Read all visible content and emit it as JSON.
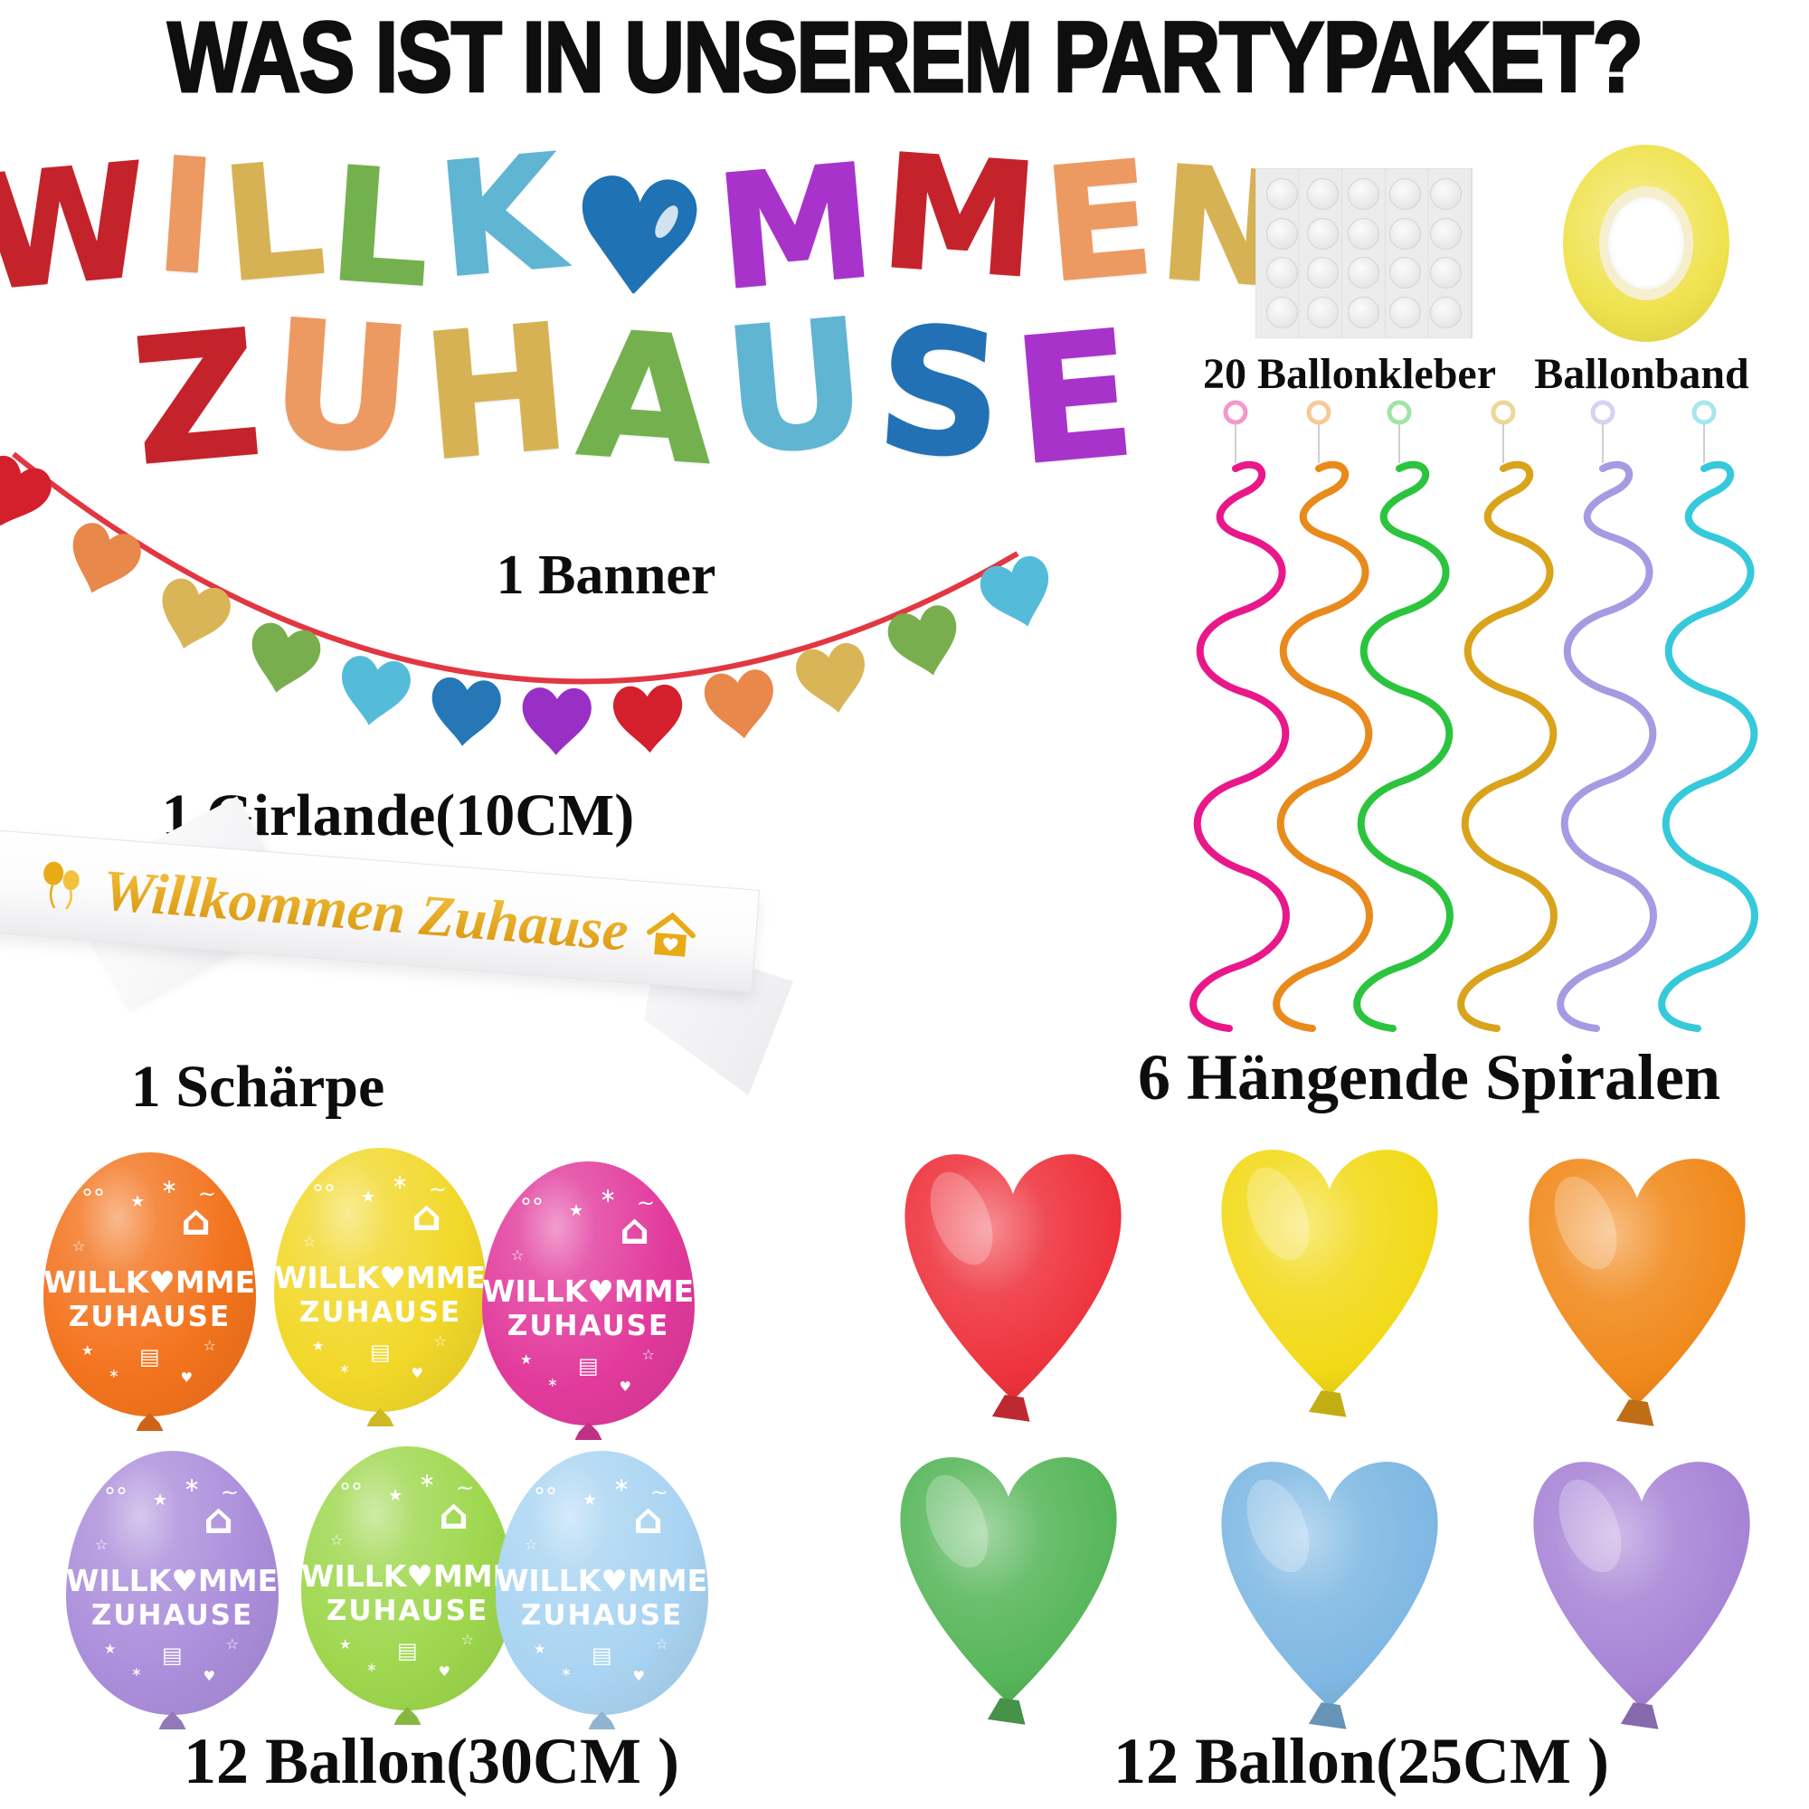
{
  "title": "WAS IST IN UNSEREM PARTYPAKET?",
  "banner": {
    "label": "1 Banner",
    "line1": [
      {
        "ch": "W",
        "color": "#c4232b"
      },
      {
        "ch": "I",
        "color": "#ec9a62"
      },
      {
        "ch": "L",
        "color": "#d7b254"
      },
      {
        "ch": "L",
        "color": "#74b14e"
      },
      {
        "ch": "K",
        "color": "#5fb5d2"
      },
      {
        "ch": "♥",
        "color": "#1f72b4"
      },
      {
        "ch": "M",
        "color": "#a833cb"
      },
      {
        "ch": "M",
        "color": "#c4232b"
      },
      {
        "ch": "E",
        "color": "#ec9a62"
      },
      {
        "ch": "N",
        "color": "#d7b254"
      }
    ],
    "line2": [
      {
        "ch": "Z",
        "color": "#c4232b"
      },
      {
        "ch": "U",
        "color": "#ec9a62"
      },
      {
        "ch": "H",
        "color": "#d7b254"
      },
      {
        "ch": "A",
        "color": "#74b14e"
      },
      {
        "ch": "U",
        "color": "#5fb5d2"
      },
      {
        "ch": "S",
        "color": "#2371b5"
      },
      {
        "ch": "E",
        "color": "#a833cb"
      }
    ]
  },
  "glue_dots": {
    "label": "20 Ballonkleber",
    "rows": 4,
    "cols": 5
  },
  "ribbon_roll": {
    "label": "Ballonband",
    "color": "#efe24d"
  },
  "garland": {
    "label": "1 Girlande(10CM)",
    "string_color": "#e23742",
    "heart_colors": [
      "#d41f2c",
      "#e8884a",
      "#d9b557",
      "#79ae4e",
      "#54bcd9",
      "#2677b6",
      "#9930c6",
      "#d41f2c",
      "#e8884a",
      "#d9b557",
      "#79ae4e",
      "#54bcd9"
    ]
  },
  "sash": {
    "label": "1 Schärpe",
    "text": "Willkommen Zuhause",
    "text_color_top": "#f6c544",
    "text_color_bottom": "#d6920a"
  },
  "spirals": {
    "label": "6 Hängende Spiralen",
    "colors": [
      "#e9188a",
      "#e98a1c",
      "#2cc43e",
      "#d9a31b",
      "#a79ae3",
      "#36c9da"
    ]
  },
  "round_balloons": {
    "label": "12 Ballon(30CM )",
    "print_line1": "WILLK♥MMEN",
    "print_line2": "ZUHAUSE",
    "colors": [
      "#f3731d",
      "#f2d829",
      "#e23a9c",
      "#ab8edb",
      "#9ed74d",
      "#a9d4f2"
    ],
    "decorations": {
      "house": "⌂",
      "star": "★",
      "star_outline": "☆",
      "sparkle": "∗",
      "heart": "♥",
      "cake": "▤",
      "confetti": "°",
      "swirl": "~"
    }
  },
  "heart_balloons": {
    "label": "12 Ballon(25CM )",
    "colors": [
      "#ee333d",
      "#f2da18",
      "#f0891b",
      "#57b65a",
      "#7fb8e3",
      "#a784d6"
    ]
  }
}
